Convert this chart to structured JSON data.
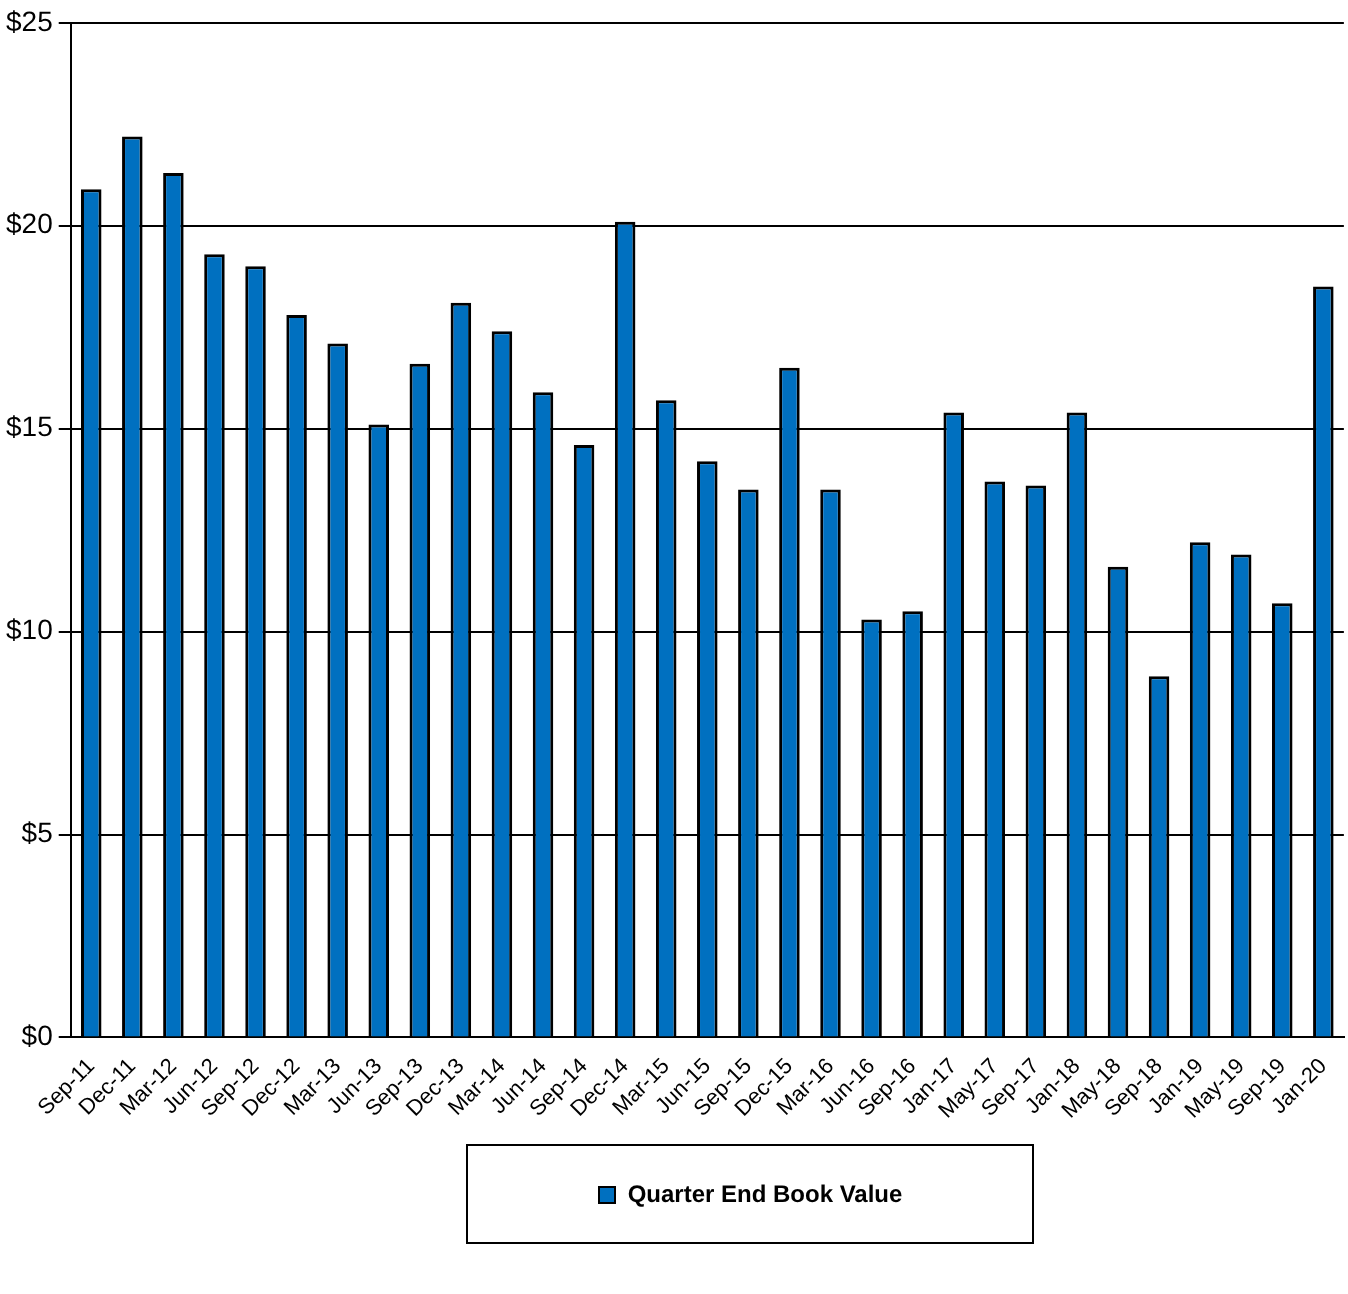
{
  "chart_data": {
    "type": "bar",
    "categories": [
      "Sep-11",
      "Dec-11",
      "Mar-12",
      "Jun-12",
      "Sep-12",
      "Dec-12",
      "Mar-13",
      "Jun-13",
      "Sep-13",
      "Dec-13",
      "Mar-14",
      "Jun-14",
      "Sep-14",
      "Dec-14",
      "Mar-15",
      "Jun-15",
      "Sep-15",
      "Dec-15",
      "Mar-16",
      "Jun-16",
      "Sep-16",
      "Jan-17",
      "May-17",
      "Sep-17",
      "Jan-18",
      "May-18",
      "Sep-18",
      "Jan-19",
      "May-19",
      "Sep-19",
      "Jan-20"
    ],
    "series": [
      {
        "name": "Quarter End Book Value",
        "color": "#0070c0",
        "values": [
          20.9,
          22.2,
          21.3,
          19.3,
          19.0,
          17.8,
          17.1,
          15.1,
          16.6,
          18.1,
          17.4,
          15.9,
          14.6,
          20.1,
          15.7,
          14.2,
          13.5,
          16.5,
          13.5,
          10.3,
          10.5,
          15.4,
          13.7,
          13.6,
          15.4,
          11.6,
          8.9,
          12.2,
          11.9,
          10.7,
          18.5
        ]
      }
    ],
    "ylim": [
      0,
      25
    ],
    "yticks": [
      {
        "value": 0,
        "label": "$0"
      },
      {
        "value": 5,
        "label": "$5"
      },
      {
        "value": 10,
        "label": "$10"
      },
      {
        "value": 15,
        "label": "$15"
      },
      {
        "value": 20,
        "label": "$20"
      },
      {
        "value": 25,
        "label": "$25"
      }
    ],
    "grid": "y",
    "legend": "bottom"
  }
}
